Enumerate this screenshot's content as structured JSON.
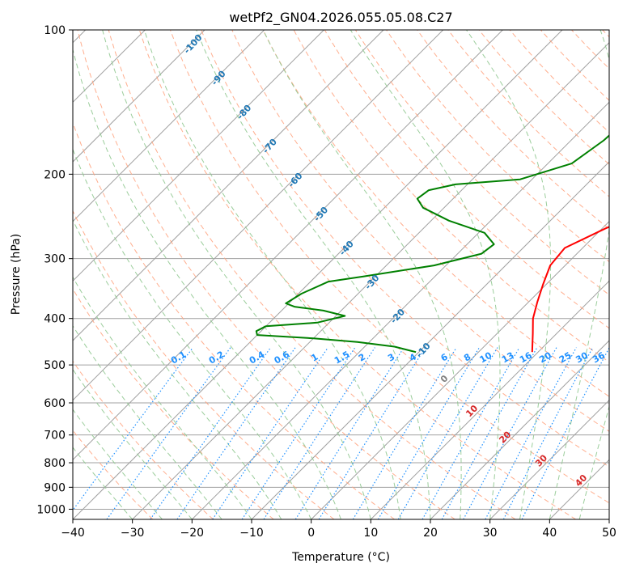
{
  "chart_data": {
    "type": "line",
    "subtype": "skew-t log-p diagram",
    "title": "wetPf2_GN04.2026.055.05.08.C27",
    "xlabel": "Temperature (°C)",
    "ylabel": "Pressure (hPa)",
    "xlim": [
      -40,
      50
    ],
    "ylim": [
      1050,
      100
    ],
    "y_scale": "log",
    "x_ticks": [
      "−40",
      "−30",
      "−20",
      "−10",
      "0",
      "10",
      "20",
      "30",
      "40",
      "50"
    ],
    "x_tick_values": [
      -40,
      -30,
      -20,
      -10,
      0,
      10,
      20,
      30,
      40,
      50
    ],
    "y_ticks": [
      "100",
      "200",
      "300",
      "400",
      "500",
      "600",
      "700",
      "800",
      "900",
      "1000"
    ],
    "y_tick_values": [
      100,
      200,
      300,
      400,
      500,
      600,
      700,
      800,
      900,
      1000
    ],
    "grid": true,
    "series": [
      {
        "role": "temperature",
        "color": "#ff0000",
        "points": [
          [
            15.0,
            100
          ],
          [
            13.0,
            110
          ],
          [
            11.5,
            125
          ],
          [
            11.3,
            140
          ],
          [
            11.5,
            160
          ],
          [
            10.8,
            190
          ],
          [
            8.5,
            215
          ],
          [
            5.0,
            235
          ],
          [
            0.5,
            260
          ],
          [
            -3.0,
            285
          ],
          [
            -2.5,
            310
          ],
          [
            -0.5,
            340
          ],
          [
            1.5,
            370
          ],
          [
            3.5,
            400
          ],
          [
            6.0,
            430
          ],
          [
            9.0,
            470
          ]
        ]
      },
      {
        "role": "dewpoint",
        "color": "#008000",
        "points": [
          [
            -10.5,
            100
          ],
          [
            -12.0,
            115
          ],
          [
            -13.0,
            130
          ],
          [
            -14.0,
            150
          ],
          [
            -14.5,
            170
          ],
          [
            -16.0,
            190
          ],
          [
            -22.0,
            205
          ],
          [
            -32.0,
            210
          ],
          [
            -35.5,
            216
          ],
          [
            -36.0,
            225
          ],
          [
            -33.5,
            235
          ],
          [
            -27.0,
            250
          ],
          [
            -19.0,
            265
          ],
          [
            -15.5,
            280
          ],
          [
            -16.0,
            293
          ],
          [
            -22.0,
            310
          ],
          [
            -32.0,
            327
          ],
          [
            -37.0,
            335
          ],
          [
            -39.5,
            355
          ],
          [
            -40.5,
            372
          ],
          [
            -38.5,
            378
          ],
          [
            -33.0,
            385
          ],
          [
            -28.5,
            395
          ],
          [
            -32.0,
            408
          ],
          [
            -40.0,
            415
          ],
          [
            -40.8,
            425
          ],
          [
            -40.0,
            433
          ],
          [
            -30.0,
            440
          ],
          [
            -22.0,
            448
          ],
          [
            -15.0,
            458
          ],
          [
            -10.5,
            470
          ]
        ]
      }
    ],
    "dry_adiabat_labels": [
      "-100",
      "-90",
      "-80",
      "-70",
      "-60",
      "-50",
      "-40",
      "-30",
      "-20",
      "-10"
    ],
    "dry_adiabat_values": [
      -100,
      -90,
      -80,
      -70,
      -60,
      -50,
      -40,
      -30,
      -20,
      -10
    ],
    "moist_adiabat_labels": [
      "0",
      "10",
      "20",
      "30",
      "40"
    ],
    "moist_adiabat_values": [
      0,
      10,
      20,
      30,
      40
    ],
    "mixing_ratio_labels": [
      "0.1",
      "0.2",
      "0.4",
      "0.6",
      "1",
      "1.5",
      "2",
      "3",
      "4",
      "6",
      "8",
      "10",
      "13",
      "16",
      "20",
      "25",
      "30",
      "36"
    ],
    "mixing_ratio_values": [
      0.1,
      0.2,
      0.4,
      0.6,
      1,
      1.5,
      2,
      3,
      4,
      6,
      8,
      10,
      13,
      16,
      20,
      25,
      30,
      36
    ],
    "mixing_ratio_label_pressure": 500
  },
  "colors": {
    "temperature": "#ff0000",
    "dewpoint": "#008000",
    "isotherm": "#a0a0a0",
    "isobar": "#a0a0a0",
    "dry_adiabat": "#ffa07a",
    "dry_adiabat_label": "#1f77b4",
    "moist_adiabat": "#90c890",
    "moist_adiabat_label": "#d62728",
    "moist_adiabat_zero_label": "#808080",
    "mixing_ratio": "#1e90ff",
    "mixing_ratio_label": "#1e90ff",
    "parcel_reference": "#d2b48c"
  }
}
